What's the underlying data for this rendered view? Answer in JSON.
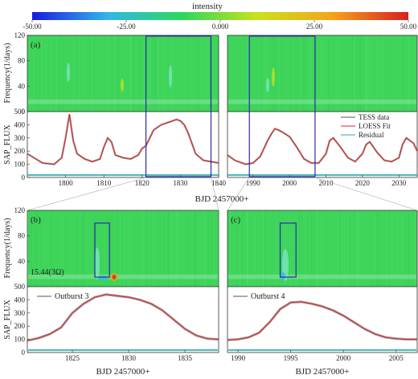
{
  "colorbar": {
    "title": "intensity",
    "ticks": [
      "-50.00",
      "-25.00",
      "0.000",
      "25.00",
      "50.00"
    ],
    "stops": [
      "#1a1adf",
      "#33b5ea",
      "#2ed85a",
      "#c9e21c",
      "#f5a21a",
      "#d81f1f"
    ]
  },
  "panels": {
    "a": {
      "label": "(a)"
    },
    "b": {
      "label": "(b)",
      "annotation": "15.44(3Ω)"
    },
    "c": {
      "label": "(c)"
    }
  },
  "axis_labels": {
    "frequency": "Frequency(1/days)",
    "sap_flux": "SAP_FLUX",
    "bjd_top": "BJD 2457000+",
    "bjd_b": "BJD 2457000+",
    "bjd_c": "BJD 2457000+"
  },
  "legend": {
    "tess": "TESS data",
    "loess": "LOESS Fit",
    "residual": "Residual",
    "outburst3": "Outburst 3",
    "outburst4": "Outburst 4"
  },
  "colors": {
    "map_bg": "#3ed55a",
    "data": "#555555",
    "fit": "#e02020",
    "residual": "#2aa9a9",
    "box": "#2a2ab0"
  },
  "chart_data": [
    {
      "type": "heatmap",
      "panel": "a",
      "ylabel": "Frequency(1/days)",
      "ylim": [
        0,
        120
      ],
      "yticks": [
        "0",
        "40",
        "80",
        "120"
      ],
      "segments": [
        {
          "xlim": [
            1790,
            1840
          ],
          "xticks": [
            "1800",
            "1810",
            "1820",
            "1830",
            "1840"
          ]
        },
        {
          "xlim": [
            1983,
            2035
          ],
          "xticks": [
            "1990",
            "2000",
            "2010",
            "2020",
            "2030"
          ]
        }
      ]
    },
    {
      "type": "line",
      "panel": "a",
      "ylabel": "SAP_FLUX",
      "xlabel": "BJD 2457000+",
      "ylim": [
        0,
        500
      ],
      "yticks": [
        "0",
        "100",
        "200",
        "300",
        "400",
        "500"
      ],
      "series": [
        {
          "name": "TESS data",
          "segment": 0,
          "x": [
            1790,
            1794,
            1797,
            1799,
            1800,
            1801,
            1802,
            1803,
            1805,
            1807,
            1809,
            1810,
            1811,
            1812,
            1813,
            1815,
            1817,
            1819,
            1820,
            1821,
            1822,
            1823,
            1824,
            1825,
            1826,
            1827,
            1828,
            1829,
            1830,
            1831,
            1832,
            1833,
            1834,
            1836,
            1838,
            1840
          ],
          "y": [
            180,
            110,
            100,
            150,
            300,
            480,
            280,
            180,
            140,
            120,
            140,
            230,
            300,
            270,
            170,
            150,
            140,
            170,
            220,
            240,
            300,
            360,
            380,
            400,
            410,
            420,
            430,
            440,
            430,
            400,
            340,
            260,
            180,
            130,
            120,
            110
          ]
        },
        {
          "name": "TESS data",
          "segment": 1,
          "x": [
            1983,
            1985,
            1988,
            1990,
            1992,
            1994,
            1995,
            1996,
            1997,
            1998,
            2000,
            2002,
            2004,
            2006,
            2008,
            2010,
            2011,
            2012,
            2014,
            2016,
            2018,
            2020,
            2021,
            2022,
            2024,
            2026,
            2028,
            2030,
            2031,
            2032,
            2034,
            2035
          ],
          "y": [
            170,
            130,
            100,
            110,
            160,
            280,
            330,
            370,
            360,
            345,
            310,
            230,
            140,
            110,
            110,
            180,
            280,
            300,
            230,
            150,
            120,
            180,
            250,
            270,
            190,
            130,
            120,
            150,
            250,
            300,
            260,
            200
          ]
        },
        {
          "name": "LOESS Fit",
          "segment": 0,
          "x": [
            1790,
            1794,
            1797,
            1799,
            1800,
            1801,
            1802,
            1803,
            1805,
            1807,
            1809,
            1810,
            1811,
            1812,
            1813,
            1815,
            1817,
            1819,
            1820,
            1821,
            1822,
            1823,
            1824,
            1825,
            1826,
            1827,
            1828,
            1829,
            1830,
            1831,
            1832,
            1833,
            1834,
            1836,
            1838,
            1840
          ],
          "y": [
            180,
            110,
            100,
            150,
            300,
            480,
            280,
            180,
            140,
            120,
            140,
            230,
            300,
            270,
            170,
            150,
            140,
            170,
            220,
            240,
            300,
            360,
            380,
            400,
            410,
            420,
            430,
            440,
            430,
            400,
            340,
            260,
            180,
            130,
            120,
            110
          ]
        },
        {
          "name": "LOESS Fit",
          "segment": 1,
          "x": [
            1983,
            1985,
            1988,
            1990,
            1992,
            1994,
            1995,
            1996,
            1997,
            1998,
            2000,
            2002,
            2004,
            2006,
            2008,
            2010,
            2011,
            2012,
            2014,
            2016,
            2018,
            2020,
            2021,
            2022,
            2024,
            2026,
            2028,
            2030,
            2031,
            2032,
            2034,
            2035
          ],
          "y": [
            170,
            130,
            100,
            110,
            160,
            280,
            330,
            370,
            360,
            345,
            310,
            230,
            140,
            110,
            110,
            180,
            280,
            300,
            230,
            150,
            120,
            180,
            250,
            270,
            190,
            130,
            120,
            150,
            250,
            300,
            260,
            200
          ]
        },
        {
          "name": "Residual",
          "segment": 0,
          "x": [
            1790,
            1840
          ],
          "y": [
            0,
            0
          ]
        },
        {
          "name": "Residual",
          "segment": 1,
          "x": [
            1983,
            2035
          ],
          "y": [
            0,
            0
          ]
        }
      ],
      "highlight_boxes": [
        {
          "segment": 0,
          "x": [
            1821,
            1838
          ]
        },
        {
          "segment": 1,
          "x": [
            1989,
            2007
          ]
        }
      ]
    },
    {
      "type": "heatmap",
      "panel": "b",
      "ylabel": "Frequency(1/days)",
      "xlim": [
        1821,
        1838
      ],
      "ylim": [
        0,
        120
      ],
      "yticks": [
        "40",
        "80",
        "120"
      ],
      "highlight_box": {
        "x": [
          1827,
          1828.3
        ],
        "y": [
          15,
          100
        ]
      }
    },
    {
      "type": "line",
      "panel": "b",
      "xlabel": "BJD 2457000+",
      "ylabel": "SAP_FLUX",
      "xlim": [
        1821,
        1838
      ],
      "ylim": [
        0,
        500
      ],
      "xticks": [
        "1825",
        "1830",
        "1835"
      ],
      "yticks": [
        "0",
        "100",
        "200",
        "300",
        "400",
        "500"
      ],
      "series": [
        {
          "name": "Outburst 3",
          "x": [
            1821,
            1822,
            1823,
            1824,
            1825,
            1826,
            1827,
            1828,
            1829,
            1830,
            1831,
            1832,
            1833,
            1834,
            1835,
            1836,
            1837,
            1838
          ],
          "y": [
            90,
            110,
            140,
            190,
            300,
            370,
            420,
            440,
            430,
            420,
            400,
            370,
            320,
            250,
            180,
            130,
            105,
            100
          ]
        },
        {
          "name": "Residual",
          "x": [
            1821,
            1838
          ],
          "y": [
            0,
            0
          ]
        }
      ]
    },
    {
      "type": "heatmap",
      "panel": "c",
      "xlim": [
        1989,
        2007
      ],
      "ylim": [
        0,
        120
      ],
      "highlight_box": {
        "x": [
          1994,
          1995.5
        ],
        "y": [
          15,
          100
        ]
      }
    },
    {
      "type": "line",
      "panel": "c",
      "xlabel": "BJD 2457000+",
      "xlim": [
        1989,
        2007
      ],
      "ylim": [
        0,
        500
      ],
      "xticks": [
        "1990",
        "1995",
        "2000",
        "2005"
      ],
      "series": [
        {
          "name": "Outburst 4",
          "x": [
            1989,
            1990,
            1991,
            1992,
            1993,
            1994,
            1995,
            1996,
            1997,
            1998,
            1999,
            2000,
            2001,
            2002,
            2003,
            2004,
            2005,
            2006,
            2007
          ],
          "y": [
            95,
            100,
            115,
            150,
            230,
            330,
            380,
            385,
            370,
            350,
            320,
            280,
            230,
            180,
            140,
            115,
            105,
            100,
            100
          ]
        },
        {
          "name": "Residual",
          "x": [
            1989,
            2007
          ],
          "y": [
            0,
            0
          ]
        }
      ]
    }
  ]
}
